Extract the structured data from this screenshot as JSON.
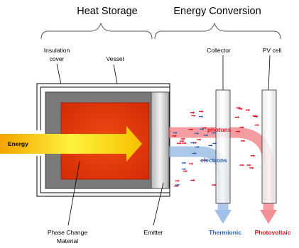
{
  "sections": {
    "heat_storage": "Heat Storage",
    "energy_conversion": "Energy Conversion"
  },
  "labels": {
    "insulation_cover_line1": "Insulation",
    "insulation_cover_line2": "cover",
    "vessel": "Vessel",
    "collector": "Collector",
    "pv_cell": "PV cell",
    "energy": "Energy",
    "photons": "photons",
    "electrons": "electrons",
    "phase_change_line1": "Phase Change",
    "phase_change_line2": "Material",
    "emitter": "Emitter",
    "thermionic": "Thermionic",
    "photovoltaic": "Photovoltaic"
  },
  "colors": {
    "energy_arrow": "#f5b800",
    "pcm": "#e8360c",
    "photon": "#f07c82",
    "electron": "#8fb6e0",
    "thermionic_text": "#2b5fb8",
    "photovoltaic_text": "#e8101c",
    "photons_text": "#e8101c",
    "electrons_text": "#2b5fb8"
  }
}
